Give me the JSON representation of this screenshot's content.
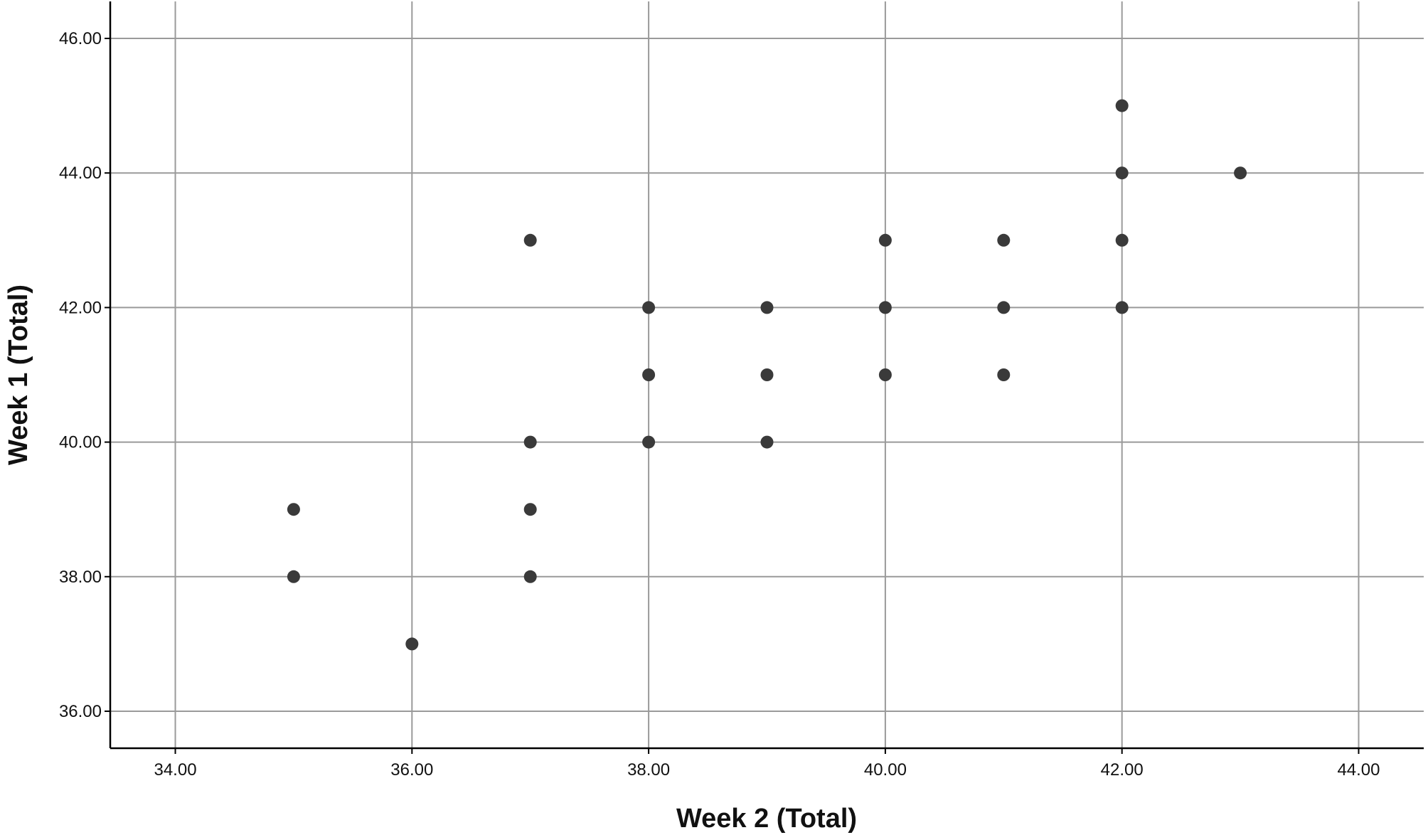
{
  "chart_data": {
    "type": "scatter",
    "title": "",
    "xlabel": "Week 2 (Total)",
    "ylabel": "Week 1 (Total)",
    "xlim": [
      33.45,
      44.55
    ],
    "ylim": [
      35.45,
      46.55
    ],
    "x_ticks": [
      34,
      36,
      38,
      40,
      42,
      44
    ],
    "y_ticks": [
      36,
      38,
      40,
      42,
      44,
      46
    ],
    "x_tick_labels": [
      "34.00",
      "36.00",
      "38.00",
      "40.00",
      "42.00",
      "44.00"
    ],
    "y_tick_labels": [
      "36.00",
      "38.00",
      "40.00",
      "42.00",
      "44.00",
      "46.00"
    ],
    "grid": true,
    "legend": "none",
    "marker_color": "#3a3a3a",
    "grid_color": "#9a9a9a",
    "axis_color": "#000000",
    "series": [
      {
        "points": [
          {
            "x": 35,
            "y": 38
          },
          {
            "x": 35,
            "y": 39
          },
          {
            "x": 36,
            "y": 37
          },
          {
            "x": 37,
            "y": 38
          },
          {
            "x": 37,
            "y": 39
          },
          {
            "x": 37,
            "y": 40
          },
          {
            "x": 37,
            "y": 43
          },
          {
            "x": 38,
            "y": 40
          },
          {
            "x": 38,
            "y": 41
          },
          {
            "x": 38,
            "y": 42
          },
          {
            "x": 39,
            "y": 40
          },
          {
            "x": 39,
            "y": 41
          },
          {
            "x": 39,
            "y": 42
          },
          {
            "x": 40,
            "y": 41
          },
          {
            "x": 40,
            "y": 42
          },
          {
            "x": 40,
            "y": 43
          },
          {
            "x": 41,
            "y": 41
          },
          {
            "x": 41,
            "y": 42
          },
          {
            "x": 41,
            "y": 43
          },
          {
            "x": 42,
            "y": 42
          },
          {
            "x": 42,
            "y": 43
          },
          {
            "x": 42,
            "y": 44
          },
          {
            "x": 42,
            "y": 45
          },
          {
            "x": 43,
            "y": 44
          }
        ]
      }
    ]
  }
}
